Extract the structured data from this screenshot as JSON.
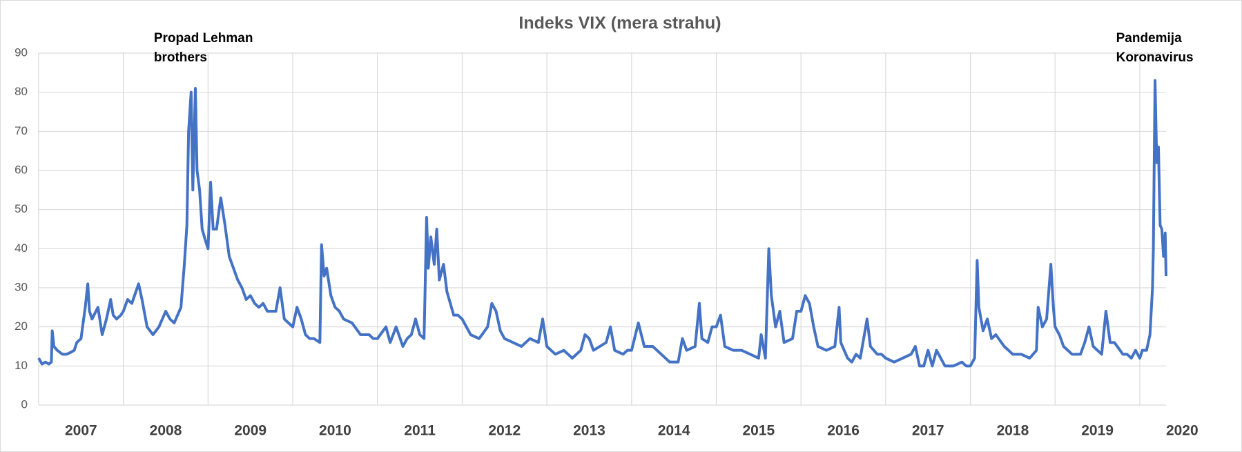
{
  "chart_data": {
    "type": "line",
    "title": "Indeks VIX (mera strahu)",
    "annotations": [
      {
        "x": 2008.36,
        "lines": [
          "Propad Lehman",
          "brothers"
        ]
      },
      {
        "x": 2019.72,
        "lines": [
          "Pandemija",
          "Koronavirus"
        ]
      }
    ],
    "xlim": [
      2007,
      2020.31
    ],
    "xticks": [
      2007,
      2008,
      2009,
      2010,
      2011,
      2012,
      2013,
      2014,
      2015,
      2016,
      2017,
      2018,
      2019,
      2020
    ],
    "ylim": [
      0,
      90
    ],
    "yticks": [
      0,
      10,
      20,
      30,
      40,
      50,
      60,
      70,
      80,
      90
    ],
    "grid": true,
    "series": [
      {
        "name": "VIX",
        "color": "#4472c4",
        "x": [
          2007.0,
          2007.04,
          2007.08,
          2007.12,
          2007.15,
          2007.16,
          2007.18,
          2007.22,
          2007.28,
          2007.33,
          2007.38,
          2007.42,
          2007.45,
          2007.5,
          2007.55,
          2007.58,
          2007.6,
          2007.63,
          2007.7,
          2007.75,
          2007.8,
          2007.85,
          2007.88,
          2007.92,
          2007.97,
          2008.0,
          2008.05,
          2008.1,
          2008.18,
          2008.22,
          2008.28,
          2008.35,
          2008.42,
          2008.5,
          2008.55,
          2008.6,
          2008.68,
          2008.72,
          2008.75,
          2008.77,
          2008.8,
          2008.82,
          2008.85,
          2008.87,
          2008.9,
          2008.93,
          2008.97,
          2009.0,
          2009.03,
          2009.06,
          2009.1,
          2009.15,
          2009.2,
          2009.25,
          2009.3,
          2009.35,
          2009.4,
          2009.45,
          2009.5,
          2009.55,
          2009.6,
          2009.65,
          2009.7,
          2009.8,
          2009.85,
          2009.9,
          2009.95,
          2010.0,
          2010.05,
          2010.1,
          2010.15,
          2010.2,
          2010.25,
          2010.32,
          2010.34,
          2010.37,
          2010.4,
          2010.45,
          2010.5,
          2010.55,
          2010.6,
          2010.7,
          2010.8,
          2010.9,
          2010.95,
          2011.0,
          2011.1,
          2011.15,
          2011.22,
          2011.3,
          2011.35,
          2011.4,
          2011.45,
          2011.5,
          2011.55,
          2011.58,
          2011.6,
          2011.63,
          2011.67,
          2011.7,
          2011.73,
          2011.78,
          2011.82,
          2011.86,
          2011.9,
          2011.95,
          2012.0,
          2012.1,
          2012.2,
          2012.3,
          2012.35,
          2012.4,
          2012.45,
          2012.5,
          2012.6,
          2012.7,
          2012.8,
          2012.9,
          2012.95,
          2013.0,
          2013.1,
          2013.2,
          2013.3,
          2013.4,
          2013.45,
          2013.5,
          2013.55,
          2013.7,
          2013.75,
          2013.8,
          2013.9,
          2013.95,
          2014.0,
          2014.08,
          2014.15,
          2014.25,
          2014.35,
          2014.45,
          2014.55,
          2014.6,
          2014.65,
          2014.75,
          2014.8,
          2014.83,
          2014.9,
          2014.95,
          2015.0,
          2015.05,
          2015.1,
          2015.2,
          2015.3,
          2015.4,
          2015.5,
          2015.53,
          2015.58,
          2015.62,
          2015.65,
          2015.7,
          2015.75,
          2015.8,
          2015.9,
          2015.95,
          2016.0,
          2016.05,
          2016.1,
          2016.15,
          2016.2,
          2016.3,
          2016.4,
          2016.45,
          2016.47,
          2016.55,
          2016.6,
          2016.65,
          2016.7,
          2016.78,
          2016.82,
          2016.9,
          2016.95,
          2017.0,
          2017.1,
          2017.2,
          2017.3,
          2017.35,
          2017.4,
          2017.45,
          2017.5,
          2017.55,
          2017.6,
          2017.7,
          2017.8,
          2017.9,
          2017.95,
          2018.0,
          2018.05,
          2018.08,
          2018.1,
          2018.15,
          2018.2,
          2018.25,
          2018.3,
          2018.4,
          2018.5,
          2018.6,
          2018.7,
          2018.78,
          2018.8,
          2018.85,
          2018.9,
          2018.95,
          2018.98,
          2019.0,
          2019.05,
          2019.1,
          2019.2,
          2019.3,
          2019.35,
          2019.4,
          2019.45,
          2019.55,
          2019.6,
          2019.65,
          2019.7,
          2019.8,
          2019.85,
          2019.9,
          2019.95,
          2020.0,
          2020.03,
          2020.08,
          2020.12,
          2020.15,
          2020.16,
          2020.18,
          2020.2,
          2020.22,
          2020.24,
          2020.26,
          2020.28,
          2020.3,
          2020.31
        ],
        "values": [
          12,
          10.5,
          11,
          10.5,
          11,
          19,
          15,
          14,
          13,
          13,
          13.5,
          14,
          16,
          17,
          25,
          31,
          24,
          22,
          25,
          18,
          22,
          27,
          23,
          22,
          23,
          24,
          27,
          26,
          31,
          27,
          20,
          18,
          20,
          24,
          22,
          21,
          25,
          36,
          46,
          70,
          80,
          55,
          81,
          60,
          55,
          45,
          42,
          40,
          57,
          45,
          45,
          53,
          46,
          38,
          35,
          32,
          30,
          27,
          28,
          26,
          25,
          26,
          24,
          24,
          30,
          22,
          21,
          20,
          25,
          22,
          18,
          17,
          17,
          16,
          41,
          33,
          35,
          28,
          25,
          24,
          22,
          21,
          18,
          18,
          17,
          17,
          20,
          16,
          20,
          15,
          17,
          18,
          22,
          18,
          17,
          48,
          35,
          43,
          36,
          45,
          32,
          36,
          29,
          26,
          23,
          23,
          22,
          18,
          17,
          20,
          26,
          24,
          19,
          17,
          16,
          15,
          17,
          16,
          22,
          15,
          13,
          14,
          12,
          14,
          18,
          17,
          14,
          16,
          20,
          14,
          13,
          14,
          14,
          21,
          15,
          15,
          13,
          11,
          11,
          17,
          14,
          15,
          26,
          17,
          16,
          20,
          20,
          23,
          15,
          14,
          14,
          13,
          12,
          18,
          12,
          40,
          28,
          20,
          24,
          16,
          17,
          24,
          24,
          28,
          26,
          20,
          15,
          14,
          15,
          25,
          16,
          12,
          11,
          13,
          12,
          22,
          15,
          13,
          13,
          12,
          11,
          12,
          13,
          15,
          10,
          10,
          14,
          10,
          14,
          10,
          10,
          11,
          10,
          10,
          12,
          37,
          25,
          19,
          22,
          17,
          18,
          15,
          13,
          13,
          12,
          14,
          25,
          20,
          22,
          36,
          25,
          20,
          18,
          15,
          13,
          13,
          16,
          20,
          15,
          13,
          24,
          16,
          16,
          13,
          13,
          12,
          14,
          12,
          14,
          14,
          18,
          30,
          40,
          83,
          62,
          66,
          46,
          45,
          38,
          44,
          33
        ]
      }
    ]
  }
}
